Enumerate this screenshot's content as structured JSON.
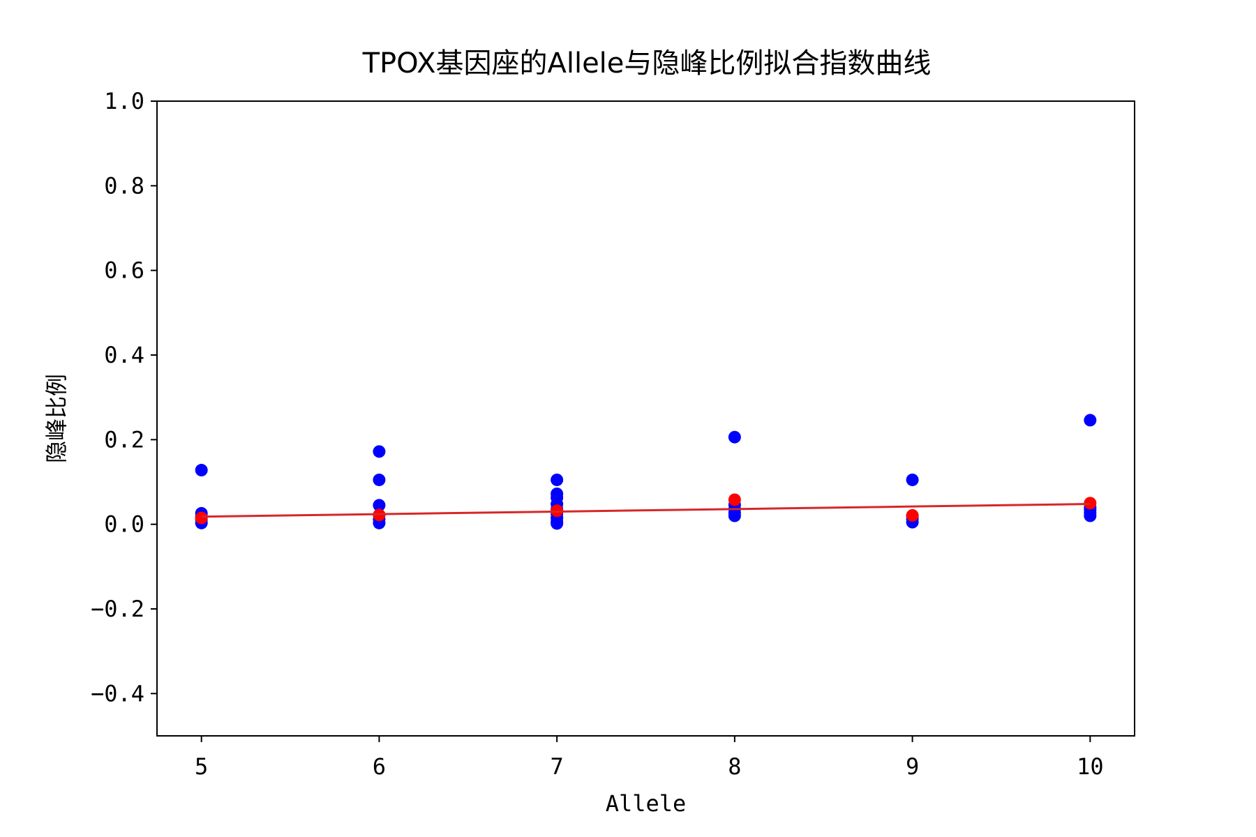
{
  "chart_data": {
    "type": "scatter",
    "title": "TPOX基因座的Allele与隐峰比例拟合指数曲线",
    "xlabel": "Allele",
    "ylabel": "隐峰比例",
    "xlim": [
      4.75,
      10.25
    ],
    "ylim": [
      -0.5,
      1.0
    ],
    "xticks": [
      5,
      6,
      7,
      8,
      9,
      10
    ],
    "xtick_labels": [
      "5",
      "6",
      "7",
      "8",
      "9",
      "10"
    ],
    "yticks": [
      -0.4,
      -0.2,
      0.0,
      0.2,
      0.4,
      0.6,
      0.8,
      1.0
    ],
    "ytick_labels": [
      "−0.4",
      "−0.2",
      "0.0",
      "0.2",
      "0.4",
      "0.6",
      "0.8",
      "1.0"
    ],
    "grid": false,
    "series": [
      {
        "kind": "scatter",
        "color": "#0000ff",
        "points": [
          [
            5,
            0.128
          ],
          [
            5,
            0.026
          ],
          [
            5,
            0.018
          ],
          [
            5,
            0.011
          ],
          [
            5,
            0.003
          ],
          [
            6,
            0.172
          ],
          [
            6,
            0.105
          ],
          [
            6,
            0.045
          ],
          [
            6,
            0.022
          ],
          [
            6,
            0.012
          ],
          [
            6,
            0.003
          ],
          [
            7,
            0.105
          ],
          [
            7,
            0.072
          ],
          [
            7,
            0.063
          ],
          [
            7,
            0.048
          ],
          [
            7,
            0.036
          ],
          [
            7,
            0.025
          ],
          [
            7,
            0.015
          ],
          [
            7,
            0.006
          ],
          [
            7,
            0.002
          ],
          [
            8,
            0.206
          ],
          [
            8,
            0.046
          ],
          [
            8,
            0.036
          ],
          [
            8,
            0.027
          ],
          [
            8,
            0.02
          ],
          [
            9,
            0.105
          ],
          [
            9,
            0.02
          ],
          [
            9,
            0.013
          ],
          [
            9,
            0.005
          ],
          [
            10,
            0.246
          ],
          [
            10,
            0.04
          ],
          [
            10,
            0.034
          ],
          [
            10,
            0.027
          ],
          [
            10,
            0.02
          ]
        ]
      },
      {
        "kind": "scatter",
        "color": "#ff0000",
        "points": [
          [
            5,
            0.015
          ],
          [
            6,
            0.022
          ],
          [
            7,
            0.032
          ],
          [
            8,
            0.058
          ],
          [
            9,
            0.021
          ],
          [
            10,
            0.05
          ]
        ]
      },
      {
        "kind": "line",
        "color": "#d62728",
        "x": [
          5,
          6,
          7,
          8,
          9,
          10
        ],
        "y": [
          0.018,
          0.024,
          0.03,
          0.036,
          0.042,
          0.048
        ]
      }
    ]
  }
}
